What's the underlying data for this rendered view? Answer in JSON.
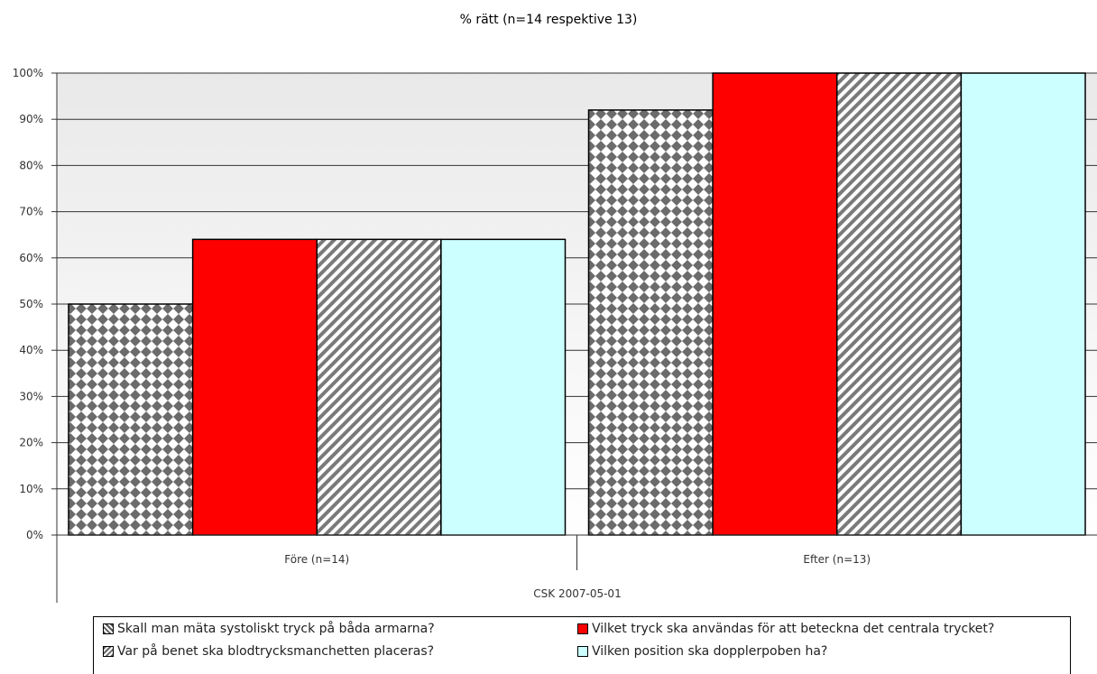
{
  "chart_data": {
    "type": "bar",
    "title": "% rätt (n=14 respektive 13)",
    "xlabel": "CSK 2007-05-01",
    "ylabel": "",
    "categories": [
      "Före (n=14)",
      "Efter (n=13)"
    ],
    "ylim": [
      0,
      100
    ],
    "yticks": [
      "0%",
      "10%",
      "20%",
      "30%",
      "40%",
      "50%",
      "60%",
      "70%",
      "80%",
      "90%",
      "100%"
    ],
    "grid": true,
    "legend_position": "bottom",
    "series": [
      {
        "name": "Skall man mäta systoliskt tryck på båda armarna?",
        "values": [
          50,
          92
        ],
        "fill": "diamond"
      },
      {
        "name": "Vilket tryck ska användas för att beteckna det centrala trycket?",
        "values": [
          64,
          100
        ],
        "fill": "#ff0000"
      },
      {
        "name": "Var på benet ska blodtrycksmanchetten placeras?",
        "values": [
          64,
          100
        ],
        "fill": "stripe"
      },
      {
        "name": "Vilken position ska dopplerpoben ha?",
        "values": [
          64,
          100
        ],
        "fill": "#ccffff"
      }
    ]
  }
}
